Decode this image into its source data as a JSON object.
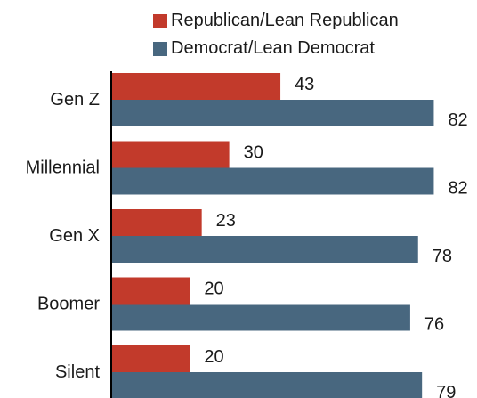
{
  "colors": {
    "republican": "#c23a2b",
    "democrat": "#48677f",
    "axis": "#000000"
  },
  "legend": [
    {
      "name": "Republican/Lean Republican",
      "color": "#c23a2b"
    },
    {
      "name": "Democrat/Lean Democrat",
      "color": "#48677f"
    }
  ],
  "chart_data": {
    "type": "bar",
    "orientation": "horizontal",
    "categories": [
      "Gen Z",
      "Millennial",
      "Gen X",
      "Boomer",
      "Silent"
    ],
    "series": [
      {
        "name": "Republican/Lean Republican",
        "values": [
          43,
          30,
          23,
          20,
          20
        ]
      },
      {
        "name": "Democrat/Lean Democrat",
        "values": [
          82,
          82,
          78,
          76,
          79
        ]
      }
    ],
    "xlim": [
      0,
      100
    ],
    "legend_position": "top",
    "grid": false
  }
}
